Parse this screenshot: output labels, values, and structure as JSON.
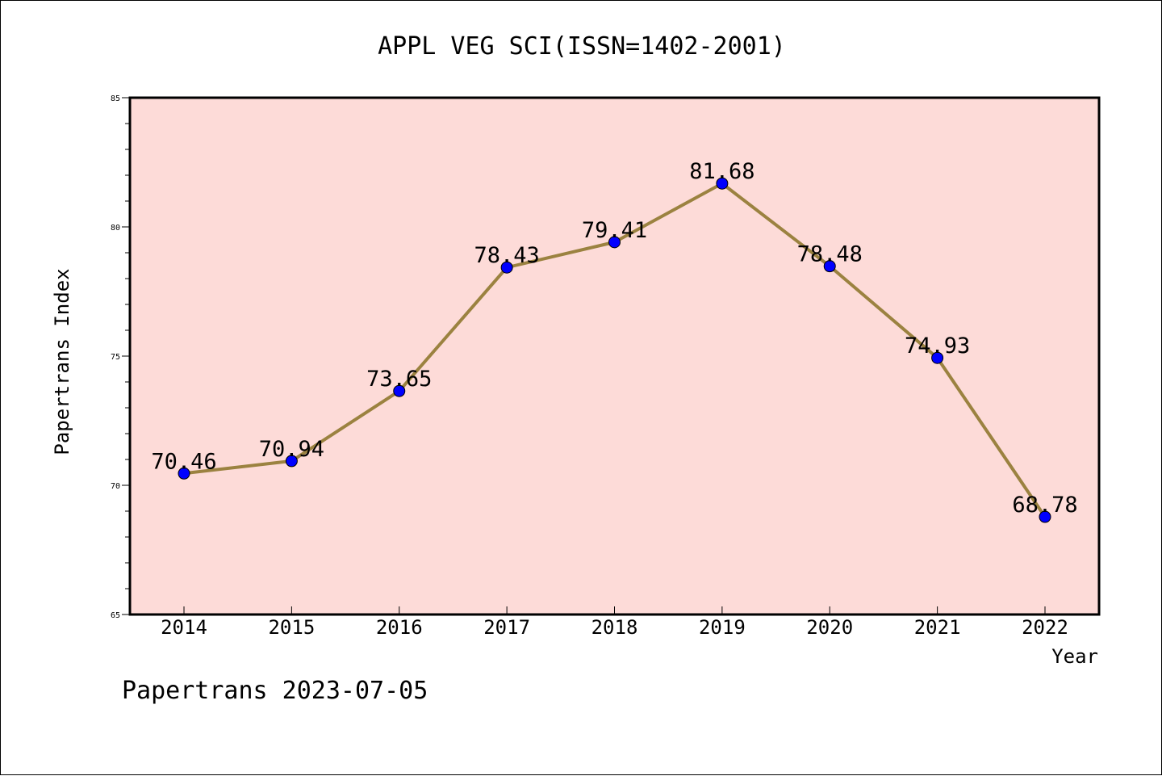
{
  "chart_data": {
    "type": "line",
    "title": "APPL VEG SCI(ISSN=1402-2001)",
    "xlabel": "Year",
    "ylabel": "Papertrans Index",
    "categories": [
      "2014",
      "2015",
      "2016",
      "2017",
      "2018",
      "2019",
      "2020",
      "2021",
      "2022"
    ],
    "values": [
      70.46,
      70.94,
      73.65,
      78.43,
      79.41,
      81.68,
      78.48,
      74.93,
      68.78
    ],
    "value_labels": [
      "70.46",
      "70.94",
      "73.65",
      "78.43",
      "79.41",
      "81.68",
      "78.48",
      "74.93",
      "68.78"
    ],
    "ylim": [
      65,
      85
    ],
    "y_ticks": [
      "65",
      "70",
      "75",
      "80",
      "85"
    ],
    "grid": false,
    "colors": {
      "plot_background": "#fddbd8",
      "line": "#9b8240",
      "marker": "#0000ff"
    }
  },
  "footer": "Papertrans 2023-07-05"
}
